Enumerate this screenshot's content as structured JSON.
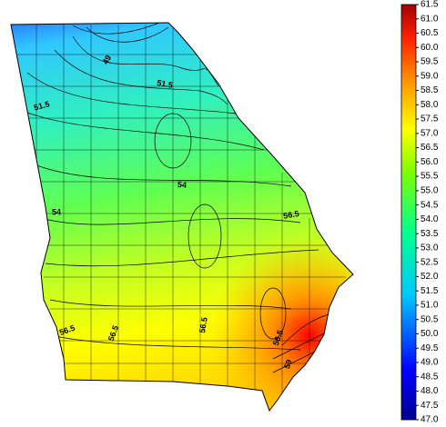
{
  "colorbar": {
    "lim": [
      47,
      61.5
    ],
    "ticks": [
      61.5,
      {
        "value": 61,
        "label": "61.0"
      },
      60.5,
      {
        "value": 60,
        "label": "60.0"
      },
      59.5,
      {
        "value": 59,
        "label": "59.0"
      },
      58.5,
      {
        "value": 58,
        "label": "58.0"
      },
      57.5,
      {
        "value": 57,
        "label": "57.0"
      },
      56.5,
      {
        "value": 56,
        "label": "56.0"
      },
      55.5,
      {
        "value": 55,
        "label": "55.0"
      },
      54.5,
      {
        "value": 54,
        "label": "54.0"
      },
      53.5,
      {
        "value": 53,
        "label": "53.0"
      },
      52.5,
      {
        "value": 52,
        "label": "52.0"
      },
      51.5,
      {
        "value": 51,
        "label": "51.0"
      },
      50.5,
      {
        "value": 50,
        "label": "50.0"
      },
      49.5,
      {
        "value": 49,
        "label": "49.0"
      },
      48.5,
      {
        "value": 48,
        "label": "48.0"
      },
      47.5,
      {
        "value": 47,
        "label": "47.0"
      }
    ]
  },
  "contour_labels": [
    49,
    51.5,
    51.5,
    54,
    54,
    56.5,
    56.5,
    56.5,
    56.5,
    56.5,
    59
  ]
}
